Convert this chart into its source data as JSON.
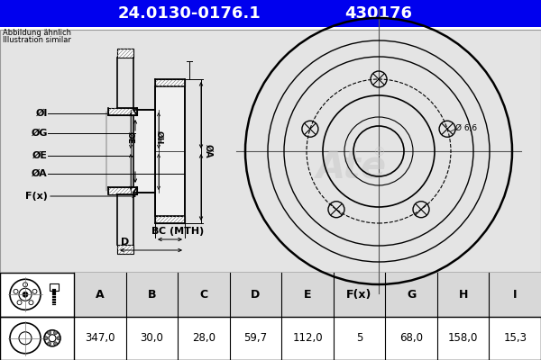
{
  "title_part": "24.0130-0176.1",
  "title_code": "430176",
  "title_bg": "#0000ee",
  "title_text_color": "#ffffff",
  "bg_color": "#ffffff",
  "diagram_bg": "#e8e8e8",
  "note_line1": "Abbildung ähnlich",
  "note_line2": "Illustration similar",
  "table_headers": [
    "A",
    "B",
    "C",
    "D",
    "E",
    "F(x)",
    "G",
    "H",
    "I"
  ],
  "table_values": [
    "347,0",
    "30,0",
    "28,0",
    "59,7",
    "112,0",
    "5",
    "68,0",
    "158,0",
    "15,3"
  ],
  "hole_label": "Ø 6,6"
}
